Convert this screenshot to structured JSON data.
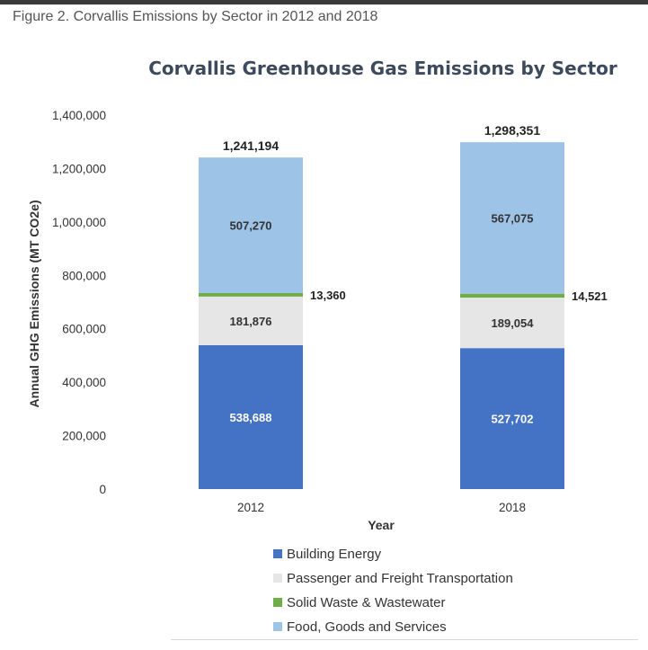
{
  "caption": "Figure 2. Corvallis Emissions by Sector in 2012 and 2018",
  "chart_data": {
    "type": "bar",
    "stacked": true,
    "title": "Corvallis Greenhouse Gas Emissions by Sector",
    "xlabel": "Year",
    "ylabel": "Annual GHG Emissions (MT CO2e)",
    "ylim": [
      0,
      1400000
    ],
    "yticks": [
      0,
      200000,
      400000,
      600000,
      800000,
      1000000,
      1200000,
      1400000
    ],
    "ytick_labels": [
      "0",
      "200,000",
      "400,000",
      "600,000",
      "800,000",
      "1,000,000",
      "1,200,000",
      "1,400,000"
    ],
    "categories": [
      "2012",
      "2018"
    ],
    "series": [
      {
        "name": "Building Energy",
        "color": "#4472c4",
        "values": [
          538688,
          527702
        ],
        "labels": [
          "538,688",
          "527,702"
        ],
        "label_color": "#ffffff"
      },
      {
        "name": "Passenger and Freight Transportation",
        "color": "#e6e6e6",
        "values": [
          181876,
          189054
        ],
        "labels": [
          "181,876",
          "189,054"
        ],
        "label_color": "#333333"
      },
      {
        "name": "Solid Waste & Wastewater",
        "color": "#70ad47",
        "values": [
          13360,
          14521
        ],
        "labels": [
          "13,360",
          "14,521"
        ],
        "label_color": "#222222"
      },
      {
        "name": "Food, Goods and Services",
        "color": "#9dc3e6",
        "values": [
          507270,
          567075
        ],
        "labels": [
          "507,270",
          "567,075"
        ],
        "label_color": "#333333"
      }
    ],
    "totals": [
      1241194,
      1298351
    ],
    "total_labels": [
      "1,241,194",
      "1,298,351"
    ],
    "legend_position": "bottom",
    "grid": false
  }
}
